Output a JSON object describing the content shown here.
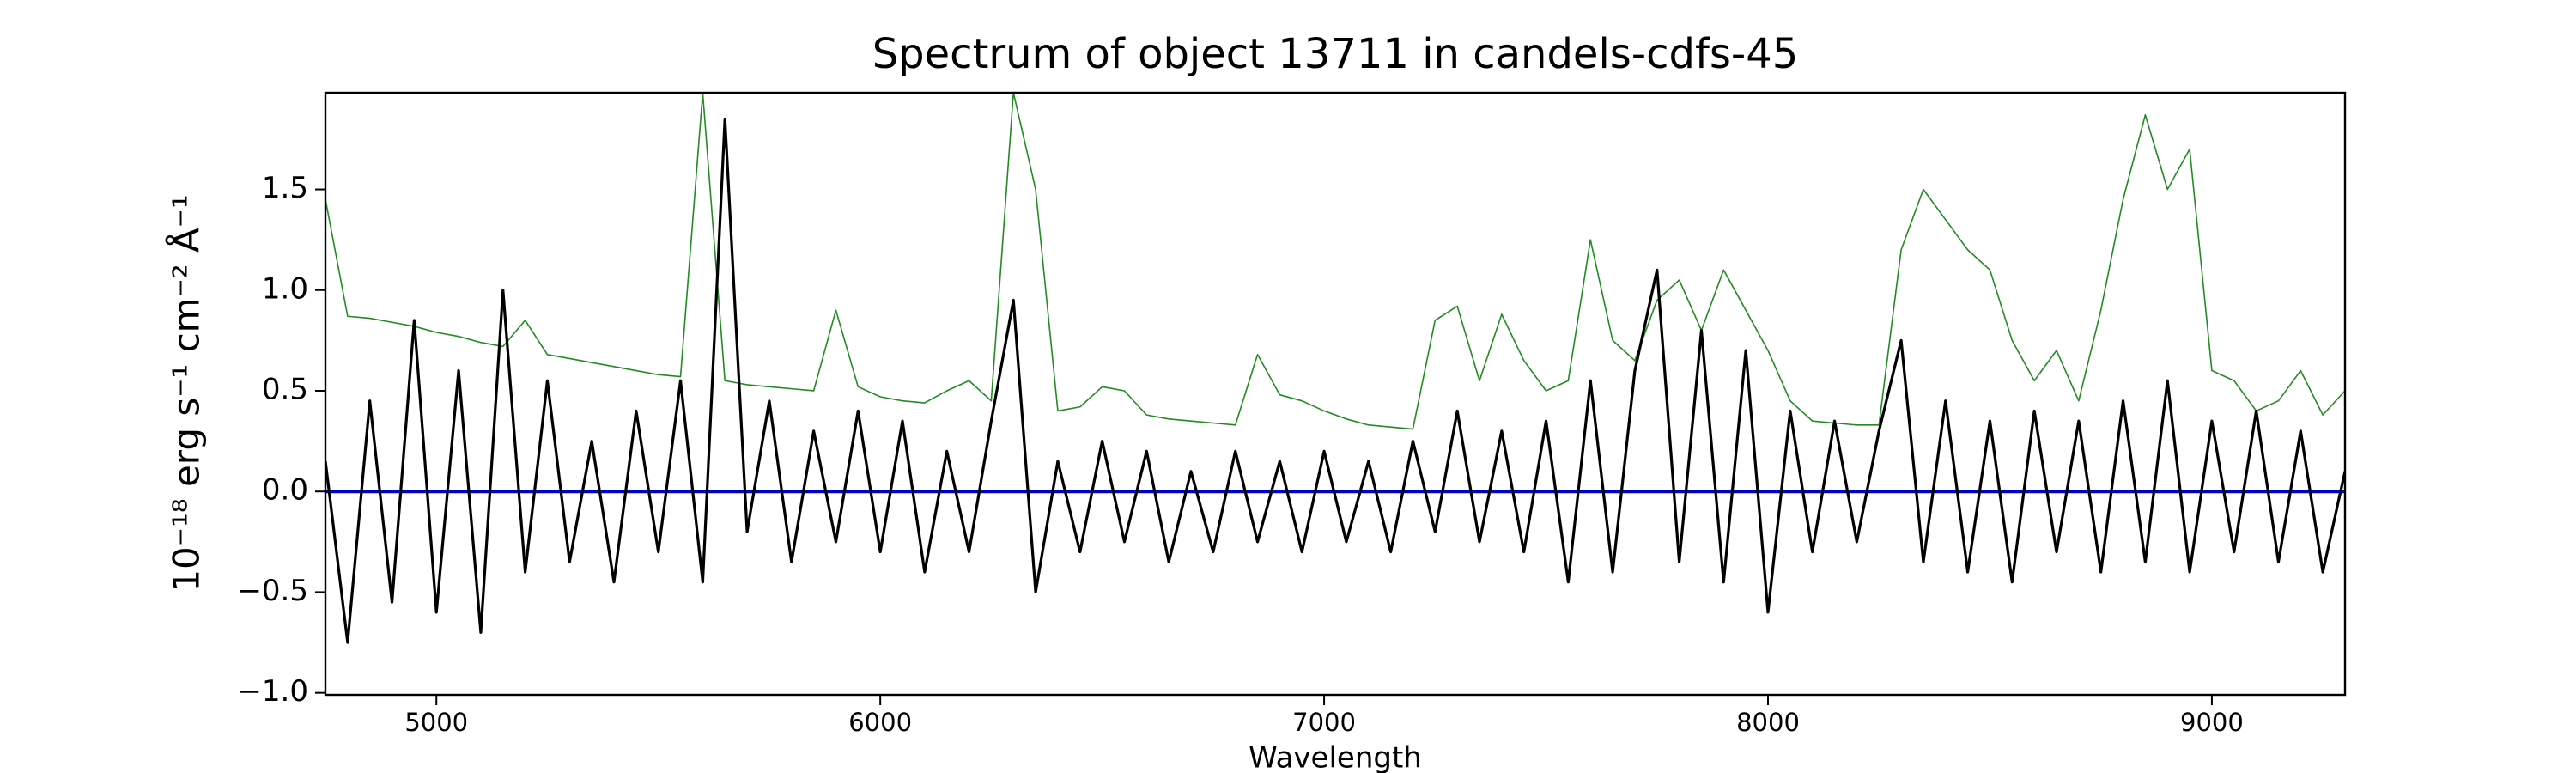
{
  "chart_data": {
    "type": "line",
    "title": "Spectrum of object 13711 in candels-cdfs-45",
    "xlabel": "Wavelength",
    "ylabel": "10⁻¹⁸ erg s⁻¹ cm⁻² Å⁻¹",
    "xlim": [
      4750,
      9300
    ],
    "ylim": [
      -1.01,
      1.98
    ],
    "xticks": [
      5000,
      6000,
      7000,
      8000,
      9000
    ],
    "yticks": [
      {
        "value": -1.0,
        "label": "−1.0"
      },
      {
        "value": -0.5,
        "label": "−0.5"
      },
      {
        "value": 0.0,
        "label": "0.0"
      },
      {
        "value": 0.5,
        "label": "0.5"
      },
      {
        "value": 1.0,
        "label": "1.0"
      },
      {
        "value": 1.5,
        "label": "1.5"
      }
    ],
    "x": [
      4750,
      4800,
      4850,
      4900,
      4950,
      5000,
      5050,
      5100,
      5150,
      5200,
      5250,
      5300,
      5350,
      5400,
      5450,
      5500,
      5550,
      5600,
      5650,
      5700,
      5750,
      5800,
      5850,
      5900,
      5950,
      6000,
      6050,
      6100,
      6150,
      6200,
      6250,
      6300,
      6350,
      6400,
      6450,
      6500,
      6550,
      6600,
      6650,
      6700,
      6750,
      6800,
      6850,
      6900,
      6950,
      7000,
      7050,
      7100,
      7150,
      7200,
      7250,
      7300,
      7350,
      7400,
      7450,
      7500,
      7550,
      7600,
      7650,
      7700,
      7750,
      7800,
      7850,
      7900,
      7950,
      8000,
      8050,
      8100,
      8150,
      8200,
      8250,
      8300,
      8350,
      8400,
      8450,
      8500,
      8550,
      8600,
      8650,
      8700,
      8750,
      8800,
      8850,
      8900,
      8950,
      9000,
      9050,
      9100,
      9150,
      9200,
      9250,
      9300
    ],
    "series": [
      {
        "color": "#228b22",
        "width": 1.6,
        "values": [
          1.45,
          0.87,
          0.86,
          0.84,
          0.82,
          0.79,
          0.77,
          0.74,
          0.72,
          0.85,
          0.68,
          0.66,
          0.64,
          0.62,
          0.6,
          0.58,
          0.57,
          1.98,
          0.55,
          0.53,
          0.52,
          0.51,
          0.5,
          0.9,
          0.52,
          0.47,
          0.45,
          0.44,
          0.5,
          0.55,
          0.45,
          1.98,
          1.5,
          0.4,
          0.42,
          0.52,
          0.5,
          0.38,
          0.36,
          0.35,
          0.34,
          0.33,
          0.68,
          0.48,
          0.45,
          0.4,
          0.36,
          0.33,
          0.32,
          0.31,
          0.85,
          0.92,
          0.55,
          0.88,
          0.65,
          0.5,
          0.55,
          1.25,
          0.75,
          0.65,
          0.95,
          1.05,
          0.8,
          1.1,
          0.9,
          0.7,
          0.45,
          0.35,
          0.34,
          0.33,
          0.33,
          1.2,
          1.5,
          1.35,
          1.2,
          1.1,
          0.75,
          0.55,
          0.7,
          0.45,
          0.9,
          1.45,
          1.87,
          1.5,
          1.7,
          0.6,
          0.55,
          0.4,
          0.45,
          0.6,
          0.38,
          0.5
        ]
      },
      {
        "color": "#0000cc",
        "width": 4,
        "values": [
          0,
          0,
          0,
          0,
          0,
          0,
          0,
          0,
          0,
          0,
          0,
          0,
          0,
          0,
          0,
          0,
          0,
          0,
          0,
          0,
          0,
          0,
          0,
          0,
          0,
          0,
          0,
          0,
          0,
          0,
          0,
          0,
          0,
          0,
          0,
          0,
          0,
          0,
          0,
          0,
          0,
          0,
          0,
          0,
          0,
          0,
          0,
          0,
          0,
          0,
          0,
          0,
          0,
          0,
          0,
          0,
          0,
          0,
          0,
          0,
          0,
          0,
          0,
          0,
          0,
          0,
          0,
          0,
          0,
          0,
          0,
          0,
          0,
          0,
          0,
          0,
          0,
          0,
          0,
          0,
          0,
          0,
          0,
          0,
          0,
          0,
          0,
          0,
          0,
          0,
          0,
          0
        ]
      },
      {
        "color": "#000000",
        "width": 3.2,
        "values": [
          0.15,
          -0.75,
          0.45,
          -0.55,
          0.85,
          -0.6,
          0.6,
          -0.7,
          1.0,
          -0.4,
          0.55,
          -0.35,
          0.25,
          -0.45,
          0.4,
          -0.3,
          0.55,
          -0.45,
          1.85,
          -0.2,
          0.45,
          -0.35,
          0.3,
          -0.25,
          0.4,
          -0.3,
          0.35,
          -0.4,
          0.2,
          -0.3,
          0.35,
          0.95,
          -0.5,
          0.15,
          -0.3,
          0.25,
          -0.25,
          0.2,
          -0.35,
          0.1,
          -0.3,
          0.2,
          -0.25,
          0.15,
          -0.3,
          0.2,
          -0.25,
          0.15,
          -0.3,
          0.25,
          -0.2,
          0.4,
          -0.25,
          0.3,
          -0.3,
          0.35,
          -0.45,
          0.55,
          -0.4,
          0.6,
          1.1,
          -0.35,
          0.8,
          -0.45,
          0.7,
          -0.6,
          0.4,
          -0.3,
          0.35,
          -0.25,
          0.3,
          0.75,
          -0.35,
          0.45,
          -0.4,
          0.35,
          -0.45,
          0.4,
          -0.3,
          0.35,
          -0.4,
          0.45,
          -0.35,
          0.55,
          -0.4,
          0.35,
          -0.3,
          0.4,
          -0.35,
          0.3,
          -0.4,
          0.1
        ]
      }
    ]
  }
}
